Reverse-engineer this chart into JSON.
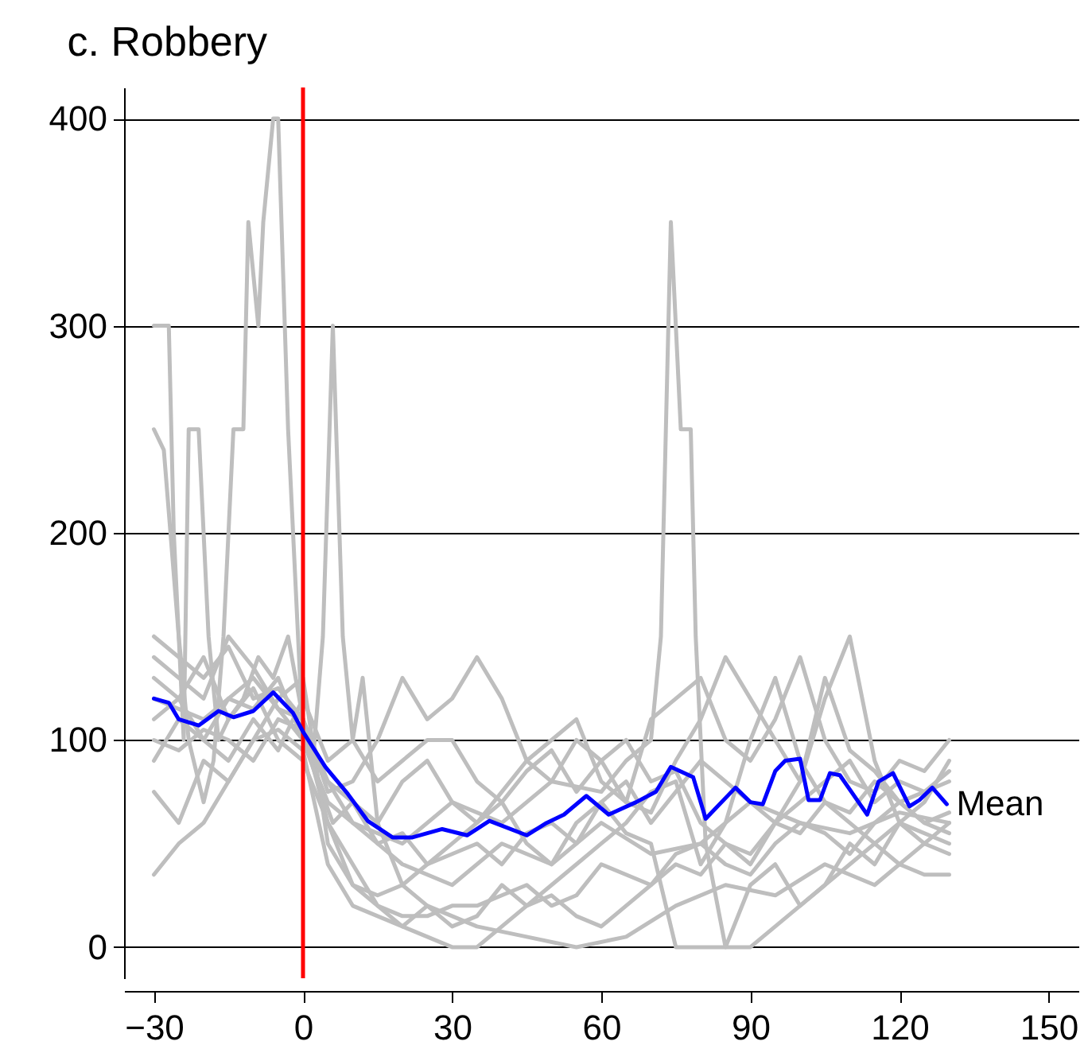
{
  "chart_data": {
    "type": "line",
    "title": "c. Robbery",
    "x": [
      -30,
      -25,
      -20,
      -15,
      -10,
      -5,
      0,
      5,
      10,
      15,
      20,
      25,
      30,
      35,
      40,
      45,
      50,
      55,
      60,
      65,
      70,
      75,
      80,
      85,
      90,
      95,
      100,
      105,
      110,
      115,
      120,
      125,
      130
    ],
    "series": [
      {
        "color": "#bebebe",
        "values": [
          130,
          120,
          140,
          110,
          125,
          100,
          90,
          60,
          40,
          20,
          15,
          15,
          20,
          20,
          25,
          30,
          20,
          25,
          40,
          35,
          30,
          45,
          50,
          40,
          35,
          50,
          60,
          55,
          45,
          60,
          70,
          60,
          65
        ]
      },
      {
        "color": "#bebebe",
        "values": [
          150,
          140,
          130,
          145,
          120,
          125,
          110,
          80,
          70,
          60,
          80,
          90,
          70,
          60,
          75,
          90,
          80,
          100,
          90,
          70,
          110,
          120,
          130,
          100,
          90,
          110,
          140,
          100,
          80,
          75,
          90,
          85,
          100
        ]
      },
      {
        "color": "#bebebe",
        "values": [
          35,
          50,
          60,
          80,
          100,
          120,
          130,
          50,
          30,
          20,
          10,
          5,
          0,
          0,
          10,
          20,
          30,
          40,
          50,
          60,
          75,
          80,
          40,
          60,
          100,
          130,
          90,
          70,
          60,
          50,
          40,
          35,
          35
        ]
      },
      {
        "color": "#bebebe",
        "values": [
          90,
          110,
          100,
          120,
          115,
          130,
          100,
          70,
          60,
          50,
          55,
          40,
          45,
          50,
          40,
          55,
          60,
          50,
          70,
          80,
          60,
          75,
          90,
          80,
          70,
          60,
          70,
          80,
          90,
          70,
          80,
          75,
          80
        ]
      },
      {
        "color": "#bebebe",
        "values": [
          75,
          60,
          90,
          80,
          100,
          105,
          95,
          40,
          20,
          15,
          10,
          20,
          10,
          15,
          30,
          20,
          25,
          15,
          10,
          20,
          30,
          40,
          35,
          50,
          45,
          60,
          55,
          70,
          65,
          80,
          70,
          75,
          85
        ]
      },
      {
        "color": "#bebebe",
        "values": [
          110,
          120,
          100,
          90,
          110,
          95,
          120,
          90,
          100,
          80,
          90,
          100,
          100,
          80,
          70,
          85,
          95,
          75,
          90,
          100,
          80,
          85,
          60,
          50,
          40,
          60,
          80,
          120,
          150,
          90,
          60,
          70,
          90
        ]
      },
      {
        "color": "#bebebe",
        "values": [
          100,
          95,
          105,
          100,
          90,
          110,
          105,
          60,
          30,
          25,
          30,
          40,
          50,
          60,
          70,
          50,
          40,
          60,
          70,
          55,
          50,
          0,
          0,
          0,
          30,
          40,
          20,
          30,
          50,
          40,
          60,
          50,
          60
        ]
      },
      {
        "color": "#bebebe",
        "values": [
          140,
          130,
          120,
          150,
          135,
          115,
          110,
          75,
          80,
          100,
          130,
          110,
          120,
          140,
          120,
          90,
          100,
          110,
          80,
          70,
          65,
          90,
          110,
          140,
          120,
          100,
          80,
          130,
          95,
          85,
          70,
          60,
          55
        ]
      },
      {
        "color": "#bebebe",
        "x": [
          -30,
          -28,
          -25,
          -23,
          -20,
          -18,
          -16,
          -14,
          -12,
          -11,
          -9,
          -8,
          -6,
          -5,
          -3,
          -1,
          0,
          3,
          6,
          10,
          15,
          20,
          30,
          40,
          50,
          60,
          70,
          80,
          90,
          100,
          110,
          120,
          130
        ],
        "values": [
          250,
          240,
          150,
          100,
          70,
          90,
          150,
          250,
          250,
          350,
          300,
          350,
          400,
          400,
          250,
          150,
          100,
          80,
          60,
          70,
          50,
          40,
          30,
          50,
          40,
          60,
          45,
          50,
          70,
          60,
          55,
          65,
          60
        ]
      },
      {
        "color": "#bebebe",
        "x": [
          -30,
          -28,
          -27,
          -26,
          -24,
          -23,
          -21,
          -19,
          -17,
          -15,
          -12,
          -9,
          -6,
          -3,
          0,
          2,
          4,
          6,
          8,
          10,
          12,
          15,
          20,
          25,
          35,
          45,
          55,
          65,
          75,
          85,
          95,
          105,
          115,
          125,
          130
        ],
        "values": [
          300,
          300,
          300,
          200,
          100,
          250,
          250,
          150,
          100,
          110,
          120,
          140,
          130,
          150,
          110,
          90,
          150,
          300,
          150,
          100,
          130,
          60,
          30,
          20,
          10,
          5,
          0,
          5,
          20,
          30,
          25,
          40,
          30,
          50,
          45
        ]
      },
      {
        "color": "#bebebe",
        "x": [
          -30,
          -20,
          -10,
          0,
          10,
          20,
          30,
          40,
          50,
          60,
          65,
          70,
          72,
          74,
          76,
          78,
          79,
          81,
          85,
          90,
          100,
          110,
          120,
          130
        ],
        "values": [
          120,
          110,
          130,
          100,
          60,
          50,
          70,
          60,
          80,
          75,
          90,
          100,
          150,
          350,
          250,
          250,
          150,
          50,
          0,
          0,
          20,
          40,
          60,
          50
        ]
      },
      {
        "name": "Mean",
        "color": "#0000ff",
        "x": [
          -30,
          -27,
          -25,
          -21,
          -17,
          -14,
          -10,
          -6,
          -2,
          0,
          4.5,
          9,
          13,
          18,
          22,
          28,
          33,
          37.5,
          45,
          49,
          52.5,
          57,
          61.5,
          67,
          71,
          74,
          78.5,
          81,
          87,
          90,
          92.5,
          95,
          97,
          100,
          101.7,
          104,
          106,
          108,
          110.6,
          113.5,
          115.8,
          118.7,
          122,
          124,
          126.6,
          129.5
        ],
        "values": [
          120,
          118,
          110,
          107,
          114,
          111,
          114,
          123,
          113,
          104,
          87,
          74,
          61,
          53,
          53,
          57,
          54,
          61,
          54,
          60,
          64,
          73,
          64,
          70,
          75,
          87,
          82,
          62,
          77,
          70,
          69,
          85,
          90,
          91,
          71,
          71,
          84,
          83,
          74,
          64,
          80,
          84,
          68,
          71,
          77,
          69
        ]
      }
    ],
    "xlim": [
      -36,
      156
    ],
    "xticks": [
      -30,
      0,
      30,
      60,
      90,
      120,
      150
    ],
    "ylim": [
      -15,
      415
    ],
    "yticks": [
      0,
      100,
      200,
      300,
      400
    ],
    "grid": "y",
    "legend": false,
    "ref_lines": [
      {
        "axis": "x",
        "value": 0,
        "color": "#ff0000"
      }
    ]
  }
}
